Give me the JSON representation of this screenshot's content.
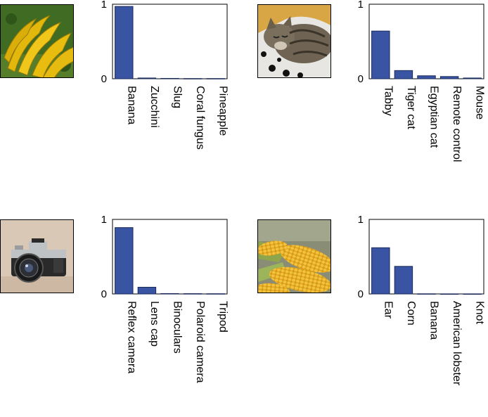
{
  "colors": {
    "bar": "#3a54a4",
    "bar_stroke": "#1a2a5a"
  },
  "chart_data": [
    {
      "type": "bar",
      "image_icon": "banana-photo",
      "categories": [
        "Banana",
        "Zucchini",
        "Slug",
        "Coral fungus",
        "Pineapple"
      ],
      "values": [
        0.97,
        0.01,
        0.005,
        0.003,
        0.003
      ],
      "yticks": [
        "0",
        "1"
      ],
      "ylim": [
        0,
        1
      ]
    },
    {
      "type": "bar",
      "image_icon": "tabby-cat-photo",
      "categories": [
        "Tabby",
        "Tiger cat",
        "Egyptian cat",
        "Remote control",
        "Mouse"
      ],
      "values": [
        0.64,
        0.11,
        0.04,
        0.03,
        0.01
      ],
      "yticks": [
        "0",
        "1"
      ],
      "ylim": [
        0,
        1
      ]
    },
    {
      "type": "bar",
      "image_icon": "reflex-camera-photo",
      "categories": [
        "Reflex camera",
        "Lens cap",
        "Binoculars",
        "Polaroid camera",
        "Tripod"
      ],
      "values": [
        0.89,
        0.09,
        0.005,
        0.004,
        0.003
      ],
      "yticks": [
        "0",
        "1"
      ],
      "ylim": [
        0,
        1
      ]
    },
    {
      "type": "bar",
      "image_icon": "corn-photo",
      "categories": [
        "Ear",
        "Corn",
        "Banana",
        "American lobster",
        "Knot"
      ],
      "values": [
        0.62,
        0.37,
        0.002,
        0.001,
        0.001
      ],
      "yticks": [
        "0",
        "1"
      ],
      "ylim": [
        0,
        1
      ]
    }
  ]
}
